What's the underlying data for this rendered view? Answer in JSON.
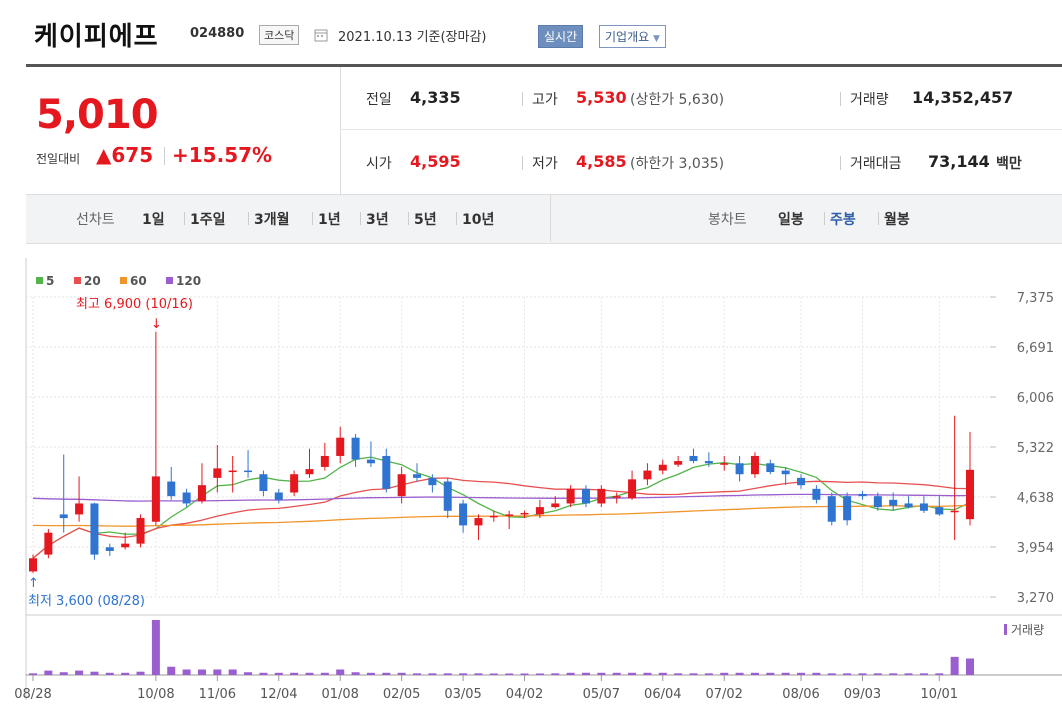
{
  "header": {
    "title": "케이피에프",
    "code": "024880",
    "market": "코스닥",
    "date": "2021.10.13 기준(장마감)",
    "realtime_label": "실시간",
    "company_label": "기업개요"
  },
  "quote": {
    "price": "5,010",
    "change_label": "전일대비",
    "change_value": "▲675",
    "change_pct": "+15.57%",
    "prev_close_label": "전일",
    "prev_close": "4,335",
    "high_label": "고가",
    "high": "5,530",
    "upper_limit": "(상한가 5,630)",
    "volume_label": "거래량",
    "volume": "14,352,457",
    "open_label": "시가",
    "open": "4,595",
    "low_label": "저가",
    "low": "4,585",
    "lower_limit": "(하한가 3,035)",
    "amount_label": "거래대금",
    "amount": "73,144",
    "amount_unit": "백만"
  },
  "period_bar": {
    "line_label": "선차트",
    "line_items": [
      "1일",
      "1주일",
      "3개월",
      "1년",
      "3년",
      "5년",
      "10년"
    ],
    "candle_label": "봉차트",
    "candle_items": [
      "일봉",
      "주봉",
      "월봉"
    ],
    "candle_active": "주봉"
  },
  "colors": {
    "up": "#e4181e",
    "down": "#2f74d0",
    "ma5": "#53b44a",
    "ma20": "#e85050",
    "ma60": "#f0952a",
    "ma120": "#9a5ecf"
  },
  "chart_data": {
    "type": "candlestick",
    "legend": [
      {
        "name": "5",
        "color": "#53b44a"
      },
      {
        "name": "20",
        "color": "#e85050"
      },
      {
        "name": "60",
        "color": "#f0952a"
      },
      {
        "name": "120",
        "color": "#9a5ecf"
      }
    ],
    "y_ticks": [
      "7,375",
      "6,691",
      "6,006",
      "5,322",
      "4,638",
      "3,954",
      "3,270"
    ],
    "ylim": [
      3270,
      7375
    ],
    "x_ticks": [
      "08/28",
      "10/08",
      "11/06",
      "12/04",
      "01/08",
      "02/05",
      "03/05",
      "04/02",
      "05/07",
      "06/04",
      "07/02",
      "08/06",
      "09/03",
      "10/01"
    ],
    "high_annotation": "최고 6,900 (10/16)",
    "low_annotation": "최저 3,600 (08/28)",
    "volume_label": "거래량",
    "candles": [
      {
        "o": 3620,
        "c": 3800,
        "h": 3850,
        "l": 3600
      },
      {
        "o": 3850,
        "c": 4150,
        "h": 4200,
        "l": 3800
      },
      {
        "o": 4400,
        "c": 4350,
        "h": 5220,
        "l": 4150
      },
      {
        "o": 4400,
        "c": 4550,
        "h": 4920,
        "l": 4300
      },
      {
        "o": 4550,
        "c": 3850,
        "h": 4560,
        "l": 3780
      },
      {
        "o": 3950,
        "c": 3900,
        "h": 4000,
        "l": 3830
      },
      {
        "o": 3950,
        "c": 4000,
        "h": 4150,
        "l": 3920
      },
      {
        "o": 4000,
        "c": 4350,
        "h": 4400,
        "l": 3950
      },
      {
        "o": 4300,
        "c": 4920,
        "h": 6900,
        "l": 4250
      },
      {
        "o": 4850,
        "c": 4650,
        "h": 5050,
        "l": 4600
      },
      {
        "o": 4700,
        "c": 4550,
        "h": 4750,
        "l": 4500
      },
      {
        "o": 4580,
        "c": 4800,
        "h": 5100,
        "l": 4550
      },
      {
        "o": 4900,
        "c": 5030,
        "h": 5350,
        "l": 4700
      },
      {
        "o": 5000,
        "c": 5000,
        "h": 5200,
        "l": 4700
      },
      {
        "o": 5000,
        "c": 4990,
        "h": 5280,
        "l": 4900
      },
      {
        "o": 4950,
        "c": 4720,
        "h": 5000,
        "l": 4650
      },
      {
        "o": 4700,
        "c": 4600,
        "h": 4750,
        "l": 4550
      },
      {
        "o": 4700,
        "c": 4950,
        "h": 5000,
        "l": 4650
      },
      {
        "o": 4950,
        "c": 5020,
        "h": 5300,
        "l": 4900
      },
      {
        "o": 5050,
        "c": 5200,
        "h": 5380,
        "l": 5000
      },
      {
        "o": 5200,
        "c": 5450,
        "h": 5600,
        "l": 5100
      },
      {
        "o": 5450,
        "c": 5150,
        "h": 5500,
        "l": 5050
      },
      {
        "o": 5150,
        "c": 5100,
        "h": 5400,
        "l": 5050
      },
      {
        "o": 5200,
        "c": 4750,
        "h": 5300,
        "l": 4700
      },
      {
        "o": 4650,
        "c": 4950,
        "h": 5050,
        "l": 4550
      },
      {
        "o": 4950,
        "c": 4900,
        "h": 5100,
        "l": 4850
      },
      {
        "o": 4900,
        "c": 4800,
        "h": 4950,
        "l": 4700
      },
      {
        "o": 4850,
        "c": 4450,
        "h": 4900,
        "l": 4350
      },
      {
        "o": 4550,
        "c": 4250,
        "h": 4600,
        "l": 4150
      },
      {
        "o": 4250,
        "c": 4350,
        "h": 4400,
        "l": 4050
      },
      {
        "o": 4380,
        "c": 4380,
        "h": 4450,
        "l": 4300
      },
      {
        "o": 4380,
        "c": 4400,
        "h": 4450,
        "l": 4200
      },
      {
        "o": 4400,
        "c": 4420,
        "h": 4450,
        "l": 4350
      },
      {
        "o": 4400,
        "c": 4500,
        "h": 4600,
        "l": 4350
      },
      {
        "o": 4500,
        "c": 4550,
        "h": 4650,
        "l": 4480
      },
      {
        "o": 4550,
        "c": 4750,
        "h": 4800,
        "l": 4500
      },
      {
        "o": 4750,
        "c": 4550,
        "h": 4800,
        "l": 4500
      },
      {
        "o": 4550,
        "c": 4750,
        "h": 4800,
        "l": 4500
      },
      {
        "o": 4650,
        "c": 4650,
        "h": 4700,
        "l": 4550
      },
      {
        "o": 4620,
        "c": 4880,
        "h": 5000,
        "l": 4600
      },
      {
        "o": 4880,
        "c": 5000,
        "h": 5100,
        "l": 4800
      },
      {
        "o": 5000,
        "c": 5080,
        "h": 5150,
        "l": 4950
      },
      {
        "o": 5080,
        "c": 5130,
        "h": 5200,
        "l": 5050
      },
      {
        "o": 5200,
        "c": 5130,
        "h": 5300,
        "l": 5100
      },
      {
        "o": 5130,
        "c": 5100,
        "h": 5250,
        "l": 5050
      },
      {
        "o": 5100,
        "c": 5100,
        "h": 5200,
        "l": 5000
      },
      {
        "o": 5100,
        "c": 4950,
        "h": 5200,
        "l": 4850
      },
      {
        "o": 4950,
        "c": 5200,
        "h": 5250,
        "l": 4900
      },
      {
        "o": 5100,
        "c": 4980,
        "h": 5150,
        "l": 4950
      },
      {
        "o": 5000,
        "c": 4950,
        "h": 5050,
        "l": 4800
      },
      {
        "o": 4900,
        "c": 4800,
        "h": 4950,
        "l": 4750
      },
      {
        "o": 4750,
        "c": 4600,
        "h": 4800,
        "l": 4550
      },
      {
        "o": 4650,
        "c": 4300,
        "h": 4700,
        "l": 4250
      },
      {
        "o": 4650,
        "c": 4320,
        "h": 4700,
        "l": 4250
      },
      {
        "o": 4680,
        "c": 4650,
        "h": 4720,
        "l": 4600
      },
      {
        "o": 4650,
        "c": 4500,
        "h": 4700,
        "l": 4450
      },
      {
        "o": 4600,
        "c": 4520,
        "h": 4700,
        "l": 4450
      },
      {
        "o": 4550,
        "c": 4500,
        "h": 4650,
        "l": 4480
      },
      {
        "o": 4550,
        "c": 4450,
        "h": 4650,
        "l": 4420
      },
      {
        "o": 4500,
        "c": 4400,
        "h": 4650,
        "l": 4380
      },
      {
        "o": 4450,
        "c": 4450,
        "h": 5750,
        "l": 4050
      },
      {
        "o": 4335,
        "c": 5010,
        "h": 5530,
        "l": 4250
      }
    ],
    "volumes": [
      0.03,
      0.08,
      0.05,
      0.08,
      0.06,
      0.04,
      0.04,
      0.06,
      1.0,
      0.15,
      0.1,
      0.1,
      0.1,
      0.1,
      0.05,
      0.04,
      0.04,
      0.04,
      0.04,
      0.04,
      0.1,
      0.05,
      0.04,
      0.04,
      0.04,
      0.03,
      0.03,
      0.03,
      0.03,
      0.03,
      0.02,
      0.02,
      0.02,
      0.02,
      0.03,
      0.04,
      0.04,
      0.04,
      0.04,
      0.04,
      0.04,
      0.04,
      0.03,
      0.03,
      0.03,
      0.04,
      0.04,
      0.04,
      0.04,
      0.04,
      0.04,
      0.04,
      0.03,
      0.03,
      0.03,
      0.03,
      0.03,
      0.03,
      0.03,
      0.03,
      0.33,
      0.3
    ]
  }
}
